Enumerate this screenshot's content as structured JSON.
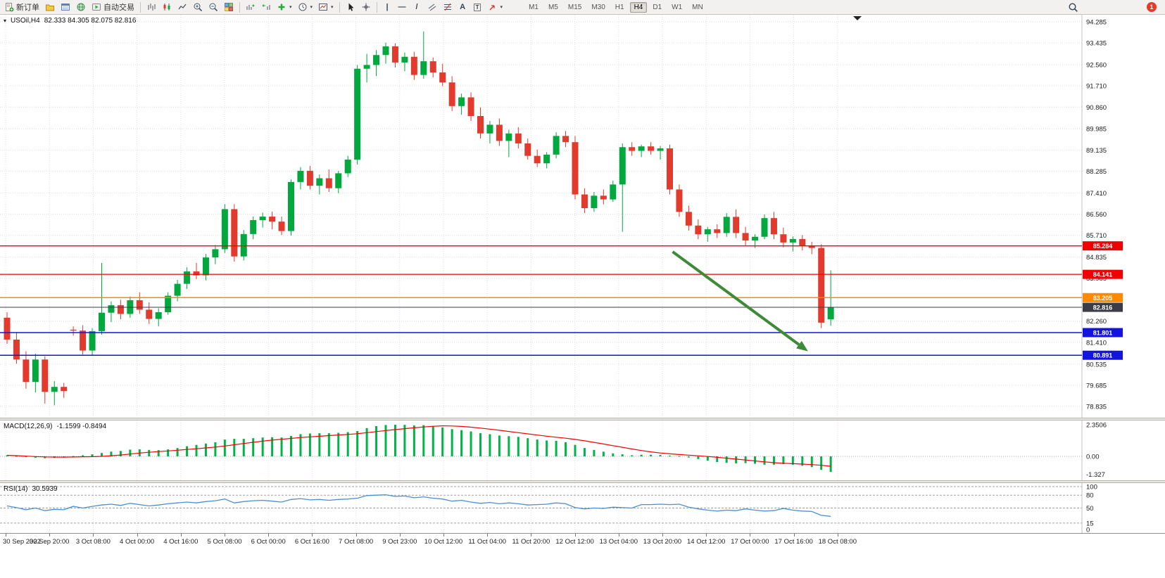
{
  "toolbar": {
    "new_order_label": "新订单",
    "autotrading_label": "自动交易",
    "timeframes": [
      "M1",
      "M5",
      "M15",
      "M30",
      "H1",
      "H4",
      "D1",
      "W1",
      "MN"
    ],
    "active_timeframe": "H4",
    "notification_count": "1"
  },
  "glyphs": {
    "caret": "▾",
    "collapse": "▾",
    "vline": "|",
    "hline": "—",
    "trendline": "/",
    "text_tool": "A",
    "label_tool": "T"
  },
  "chart_data": [
    {
      "type": "candlestick",
      "title": "USOil,H4",
      "ohlc_text": "82.333 84.305 82.075 82.816",
      "ylim": [
        78.835,
        94.285
      ],
      "y_ticks": [
        94.285,
        93.435,
        92.56,
        91.71,
        90.86,
        89.985,
        89.135,
        88.285,
        87.41,
        86.56,
        85.71,
        84.835,
        83.985,
        82.26,
        81.41,
        80.535,
        79.685,
        78.835
      ],
      "time_labels": [
        "30 Sep 2022",
        "30 Sep 20:00",
        "3 Oct 08:00",
        "4 Oct 00:00",
        "4 Oct 16:00",
        "5 Oct 08:00",
        "6 Oct 00:00",
        "6 Oct 16:00",
        "7 Oct 08:00",
        "9 Oct 23:00",
        "10 Oct 12:00",
        "11 Oct 04:00",
        "11 Oct 20:00",
        "12 Oct 12:00",
        "13 Oct 04:00",
        "13 Oct 20:00",
        "14 Oct 12:00",
        "17 Oct 00:00",
        "17 Oct 16:00",
        "18 Oct 08:00"
      ],
      "candles": [
        [
          82.4,
          82.62,
          81.35,
          81.52
        ],
        [
          81.52,
          81.82,
          80.55,
          80.72
        ],
        [
          80.72,
          81.05,
          79.55,
          79.82
        ],
        [
          79.82,
          80.95,
          79.4,
          80.72
        ],
        [
          80.72,
          80.85,
          78.95,
          79.42
        ],
        [
          79.42,
          79.85,
          78.88,
          79.62
        ],
        [
          79.62,
          79.78,
          79.18,
          79.45
        ],
        [
          81.92,
          82.05,
          81.68,
          81.88
        ],
        [
          81.88,
          82.1,
          80.92,
          81.08
        ],
        [
          81.08,
          81.98,
          80.9,
          81.86
        ],
        [
          81.86,
          84.6,
          81.72,
          82.6
        ],
        [
          82.6,
          83.05,
          82.22,
          82.9
        ],
        [
          82.9,
          83.12,
          82.34,
          82.55
        ],
        [
          82.55,
          83.25,
          82.4,
          83.1
        ],
        [
          83.1,
          83.42,
          82.55,
          82.72
        ],
        [
          82.72,
          83.02,
          82.15,
          82.35
        ],
        [
          82.35,
          82.78,
          82.05,
          82.62
        ],
        [
          82.62,
          83.42,
          82.52,
          83.28
        ],
        [
          83.28,
          83.92,
          83.06,
          83.76
        ],
        [
          83.76,
          84.42,
          83.55,
          84.26
        ],
        [
          84.26,
          84.6,
          83.95,
          84.1
        ],
        [
          84.1,
          84.96,
          83.9,
          84.82
        ],
        [
          84.82,
          85.32,
          84.55,
          85.15
        ],
        [
          85.15,
          86.96,
          85.0,
          86.76
        ],
        [
          86.76,
          86.96,
          84.65,
          84.86
        ],
        [
          84.86,
          85.92,
          84.7,
          85.76
        ],
        [
          85.76,
          86.46,
          85.55,
          86.32
        ],
        [
          86.32,
          86.62,
          86.02,
          86.46
        ],
        [
          86.46,
          86.66,
          85.95,
          86.26
        ],
        [
          86.26,
          86.46,
          85.72,
          85.88
        ],
        [
          85.88,
          87.95,
          85.7,
          87.85
        ],
        [
          87.85,
          88.45,
          87.55,
          88.3
        ],
        [
          88.3,
          88.5,
          87.55,
          87.7
        ],
        [
          87.7,
          88.15,
          87.35,
          88.0
        ],
        [
          88.0,
          88.35,
          87.45,
          87.6
        ],
        [
          87.6,
          88.3,
          87.4,
          88.2
        ],
        [
          88.2,
          88.9,
          88.05,
          88.75
        ],
        [
          88.75,
          92.55,
          88.55,
          92.4
        ],
        [
          92.4,
          93.0,
          91.85,
          92.55
        ],
        [
          92.55,
          93.15,
          92.1,
          92.95
        ],
        [
          92.95,
          93.45,
          92.6,
          93.3
        ],
        [
          93.3,
          93.42,
          92.45,
          92.65
        ],
        [
          92.65,
          93.05,
          92.3,
          92.88
        ],
        [
          92.88,
          93.08,
          91.95,
          92.15
        ],
        [
          92.15,
          93.9,
          92.0,
          92.7
        ],
        [
          92.7,
          92.85,
          92.05,
          92.25
        ],
        [
          92.25,
          92.6,
          91.7,
          91.85
        ],
        [
          91.85,
          92.1,
          90.7,
          90.9
        ],
        [
          90.9,
          91.4,
          90.55,
          91.25
        ],
        [
          91.25,
          91.45,
          90.3,
          90.5
        ],
        [
          90.5,
          90.85,
          89.6,
          89.8
        ],
        [
          89.8,
          90.3,
          89.4,
          90.15
        ],
        [
          90.15,
          90.4,
          89.3,
          89.5
        ],
        [
          89.5,
          89.95,
          88.85,
          89.8
        ],
        [
          89.8,
          90.05,
          89.2,
          89.4
        ],
        [
          89.4,
          89.6,
          88.75,
          88.9
        ],
        [
          88.9,
          89.15,
          88.45,
          88.6
        ],
        [
          88.6,
          89.05,
          88.4,
          88.95
        ],
        [
          88.95,
          89.85,
          88.8,
          89.7
        ],
        [
          89.7,
          89.9,
          89.25,
          89.45
        ],
        [
          89.45,
          89.7,
          87.15,
          87.35
        ],
        [
          87.35,
          87.6,
          86.6,
          86.8
        ],
        [
          86.8,
          87.45,
          86.65,
          87.3
        ],
        [
          87.3,
          87.55,
          86.95,
          87.15
        ],
        [
          87.15,
          87.9,
          87.05,
          87.75
        ],
        [
          87.75,
          89.4,
          85.85,
          89.25
        ],
        [
          89.25,
          89.45,
          88.9,
          89.1
        ],
        [
          89.1,
          89.35,
          88.85,
          89.28
        ],
        [
          89.28,
          89.45,
          88.95,
          89.1
        ],
        [
          89.1,
          89.3,
          88.75,
          89.2
        ],
        [
          89.2,
          89.35,
          87.35,
          87.55
        ],
        [
          87.55,
          87.75,
          86.45,
          86.65
        ],
        [
          86.65,
          86.9,
          85.9,
          86.1
        ],
        [
          86.1,
          86.35,
          85.55,
          85.75
        ],
        [
          85.75,
          86.05,
          85.45,
          85.95
        ],
        [
          85.95,
          86.15,
          85.6,
          85.8
        ],
        [
          85.8,
          86.6,
          85.65,
          86.45
        ],
        [
          86.45,
          86.75,
          85.6,
          85.8
        ],
        [
          85.8,
          86.05,
          85.3,
          85.5
        ],
        [
          85.5,
          85.75,
          85.2,
          85.65
        ],
        [
          85.65,
          86.55,
          85.55,
          86.4
        ],
        [
          86.4,
          86.65,
          85.55,
          85.75
        ],
        [
          85.75,
          86.02,
          85.22,
          85.42
        ],
        [
          85.42,
          85.66,
          85.06,
          85.56
        ],
        [
          85.56,
          85.72,
          85.1,
          85.3
        ],
        [
          85.3,
          85.45,
          84.95,
          85.2
        ],
        [
          85.2,
          85.35,
          81.98,
          82.2
        ],
        [
          82.333,
          84.305,
          82.075,
          82.816
        ]
      ],
      "colors": {
        "bull": "#00a83e",
        "bear": "#e23b2e",
        "grid": "#dedede"
      },
      "hlines": [
        {
          "value": 85.284,
          "color": "#f00000",
          "width": 1.3
        },
        {
          "value": 84.141,
          "color": "#f00000",
          "width": 1.3
        },
        {
          "value": 83.205,
          "color": "#ff8a00",
          "width": 1.5
        },
        {
          "value": 82.816,
          "color": "#3c3c46",
          "width": 1,
          "role": "current_price"
        },
        {
          "value": 81.801,
          "color": "#1414e0",
          "width": 1.5
        },
        {
          "value": 80.891,
          "color": "#1414e0",
          "width": 1.5
        }
      ],
      "arrow": {
        "from_candle": 70.3,
        "from_price": 85.05,
        "to_candle": 84.6,
        "to_price": 81.05,
        "color": "#3d8b37",
        "width": 4
      }
    },
    {
      "type": "bar",
      "name": "MACD",
      "title": "MACD(12,26,9)",
      "values_text": "-1.1599 -0.8494",
      "values": [
        0.08,
        0.02,
        -0.06,
        -0.1,
        -0.14,
        -0.12,
        -0.08,
        0.02,
        0.08,
        0.15,
        0.25,
        0.35,
        0.4,
        0.5,
        0.52,
        0.48,
        0.46,
        0.52,
        0.62,
        0.75,
        0.85,
        0.95,
        1.05,
        1.25,
        1.3,
        1.3,
        1.35,
        1.4,
        1.42,
        1.4,
        1.52,
        1.65,
        1.7,
        1.72,
        1.72,
        1.75,
        1.8,
        1.88,
        2.1,
        2.25,
        2.33,
        2.35,
        2.34,
        2.3,
        2.32,
        2.25,
        2.15,
        2.02,
        1.95,
        1.85,
        1.72,
        1.65,
        1.55,
        1.5,
        1.45,
        1.35,
        1.25,
        1.18,
        1.15,
        1.05,
        0.85,
        0.62,
        0.48,
        0.35,
        0.22,
        0.15,
        0.08,
        0.12,
        0.12,
        0.1,
        0.06,
        0.02,
        -0.08,
        -0.2,
        -0.32,
        -0.42,
        -0.48,
        -0.52,
        -0.5,
        -0.55,
        -0.62,
        -0.62,
        -0.58,
        -0.62,
        -0.7,
        -0.8,
        -1.0,
        -1.16
      ],
      "y_ticks": [
        {
          "v": 2.3506,
          "label": "2.3506"
        },
        {
          "v": 0,
          "label": "0.00"
        },
        {
          "v": -1.327,
          "label": "-1.327"
        }
      ],
      "colors": {
        "histogram": "#00b44a",
        "signal": "#f20000"
      }
    },
    {
      "type": "line",
      "name": "RSI",
      "title": "RSI(14)",
      "value_text": "30.5939",
      "range": [
        0,
        100
      ],
      "levels": [
        100,
        80,
        50,
        15
      ],
      "values": [
        55,
        51,
        46,
        50,
        44,
        47,
        46,
        54,
        50,
        54,
        57,
        59,
        56,
        61,
        58,
        55,
        57,
        60,
        62,
        64,
        62,
        65,
        67,
        71,
        62,
        65,
        67,
        68,
        66,
        64,
        70,
        72,
        69,
        70,
        68,
        70,
        71,
        73,
        79,
        80,
        81,
        77,
        78,
        74,
        76,
        73,
        71,
        66,
        68,
        64,
        61,
        63,
        60,
        62,
        60,
        57,
        58,
        59,
        62,
        60,
        51,
        48,
        50,
        49,
        52,
        51,
        50,
        58,
        58,
        59,
        58,
        59,
        52,
        48,
        45,
        43,
        45,
        44,
        48,
        45,
        43,
        44,
        49,
        45,
        43,
        42,
        33,
        30.59
      ],
      "y_ticks": [
        {
          "v": 100,
          "label": "100"
        },
        {
          "v": 80,
          "label": "80"
        },
        {
          "v": 50,
          "label": "50"
        },
        {
          "v": 15,
          "label": "15"
        },
        {
          "v": 0,
          "label": "0"
        }
      ],
      "color": "#4a8fd4"
    }
  ]
}
